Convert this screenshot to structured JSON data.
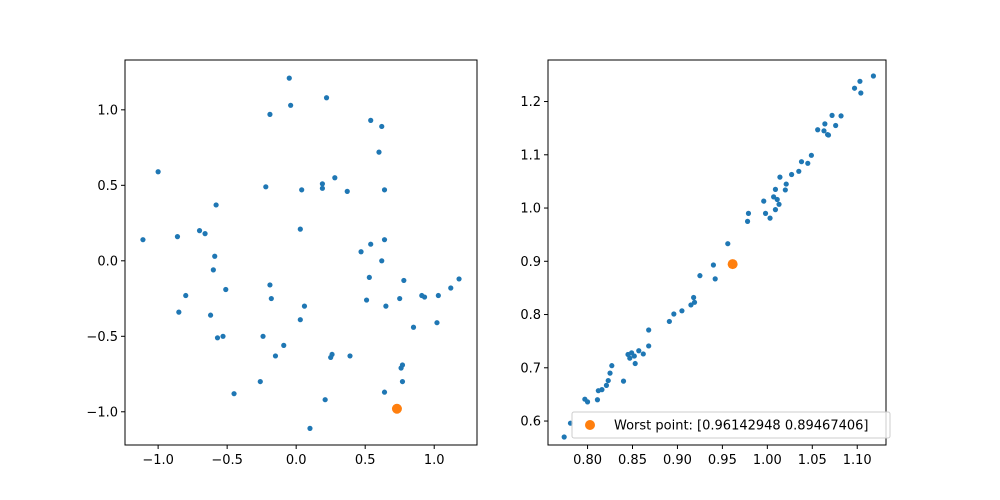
{
  "figure": {
    "background": "#ffffff",
    "series_color": "#1f77b4",
    "worst_color": "#ff7f0e"
  },
  "chart_data": [
    {
      "type": "scatter",
      "title": "",
      "xlabel": "",
      "ylabel": "",
      "xlim": [
        -1.24,
        1.31
      ],
      "ylim": [
        -1.22,
        1.33
      ],
      "xticks": [
        -1.0,
        -0.5,
        0.0,
        0.5,
        1.0
      ],
      "xtick_labels": [
        "−1.0",
        "−0.5",
        "0.0",
        "0.5",
        "1.0"
      ],
      "yticks": [
        -1.0,
        -0.5,
        0.0,
        0.5,
        1.0
      ],
      "yticks_labels_note": "",
      "ytick_labels": [
        "−1.0",
        "−0.5",
        "0.0",
        "0.5",
        "1.0"
      ],
      "grid": false,
      "series": [
        {
          "color": "#1f77b4",
          "marker_size": "small",
          "points": [
            [
              -0.05,
              1.21
            ],
            [
              -0.04,
              1.03
            ],
            [
              0.22,
              1.08
            ],
            [
              -0.19,
              0.97
            ],
            [
              0.54,
              0.93
            ],
            [
              0.62,
              0.89
            ],
            [
              0.6,
              0.72
            ],
            [
              -1.0,
              0.59
            ],
            [
              -0.58,
              0.37
            ],
            [
              -0.22,
              0.49
            ],
            [
              0.04,
              0.47
            ],
            [
              0.19,
              0.51
            ],
            [
              0.19,
              0.48
            ],
            [
              0.28,
              0.55
            ],
            [
              0.37,
              0.46
            ],
            [
              0.64,
              0.47
            ],
            [
              -0.7,
              0.2
            ],
            [
              -0.66,
              0.18
            ],
            [
              -0.86,
              0.16
            ],
            [
              0.03,
              0.21
            ],
            [
              -1.11,
              0.14
            ],
            [
              0.64,
              0.14
            ],
            [
              0.54,
              0.11
            ],
            [
              0.47,
              0.06
            ],
            [
              -0.59,
              0.03
            ],
            [
              -0.6,
              -0.06
            ],
            [
              0.62,
              0.0
            ],
            [
              -0.19,
              -0.16
            ],
            [
              0.53,
              -0.11
            ],
            [
              -0.51,
              -0.19
            ],
            [
              0.78,
              -0.13
            ],
            [
              1.18,
              -0.12
            ],
            [
              1.12,
              -0.18
            ],
            [
              -0.8,
              -0.23
            ],
            [
              -0.18,
              -0.25
            ],
            [
              0.51,
              -0.26
            ],
            [
              0.75,
              -0.25
            ],
            [
              0.91,
              -0.23
            ],
            [
              0.93,
              -0.24
            ],
            [
              1.03,
              -0.23
            ],
            [
              0.06,
              -0.3
            ],
            [
              0.65,
              -0.3
            ],
            [
              -0.85,
              -0.34
            ],
            [
              -0.62,
              -0.36
            ],
            [
              0.03,
              -0.39
            ],
            [
              1.02,
              -0.41
            ],
            [
              0.85,
              -0.44
            ],
            [
              -0.53,
              -0.5
            ],
            [
              -0.57,
              -0.51
            ],
            [
              -0.24,
              -0.5
            ],
            [
              -0.09,
              -0.56
            ],
            [
              -0.15,
              -0.63
            ],
            [
              0.26,
              -0.62
            ],
            [
              0.25,
              -0.64
            ],
            [
              0.39,
              -0.63
            ],
            [
              0.77,
              -0.69
            ],
            [
              0.76,
              -0.71
            ],
            [
              0.77,
              -0.8
            ],
            [
              -0.26,
              -0.8
            ],
            [
              -0.45,
              -0.88
            ],
            [
              0.64,
              -0.87
            ],
            [
              0.21,
              -0.92
            ],
            [
              0.1,
              -1.11
            ]
          ]
        },
        {
          "color": "#ff7f0e",
          "marker_size": "large",
          "points": [
            [
              0.73,
              -0.98
            ]
          ]
        }
      ]
    },
    {
      "type": "scatter",
      "title": "",
      "xlabel": "",
      "ylabel": "",
      "xlim": [
        0.756,
        1.132
      ],
      "ylim": [
        0.555,
        1.278
      ],
      "xticks": [
        0.8,
        0.85,
        0.9,
        0.95,
        1.0,
        1.05,
        1.1
      ],
      "xtick_labels": [
        "0.80",
        "0.85",
        "0.90",
        "0.95",
        "1.00",
        "1.05",
        "1.10"
      ],
      "yticks": [
        0.6,
        0.7,
        0.8,
        0.9,
        1.0,
        1.1,
        1.2
      ],
      "ytick_labels": [
        "0.6",
        "0.7",
        "0.8",
        "0.9",
        "1.0",
        "1.1",
        "1.2"
      ],
      "grid": false,
      "legend": {
        "placement": "lower-right",
        "entries": [
          {
            "label": "Worst point: [0.96142948 0.89467406]",
            "color": "#ff7f0e"
          }
        ]
      },
      "series": [
        {
          "color": "#1f77b4",
          "marker_size": "small",
          "points": [
            [
              0.774,
              0.57
            ],
            [
              0.781,
              0.596
            ],
            [
              0.797,
              0.641
            ],
            [
              0.8,
              0.636
            ],
            [
              0.812,
              0.657
            ],
            [
              0.811,
              0.64
            ],
            [
              0.816,
              0.659
            ],
            [
              0.821,
              0.667
            ],
            [
              0.823,
              0.676
            ],
            [
              0.825,
              0.69
            ],
            [
              0.827,
              0.704
            ],
            [
              0.84,
              0.675
            ],
            [
              0.845,
              0.725
            ],
            [
              0.847,
              0.718
            ],
            [
              0.849,
              0.728
            ],
            [
              0.852,
              0.722
            ],
            [
              0.853,
              0.708
            ],
            [
              0.857,
              0.732
            ],
            [
              0.862,
              0.726
            ],
            [
              0.868,
              0.741
            ],
            [
              0.868,
              0.771
            ],
            [
              0.891,
              0.787
            ],
            [
              0.896,
              0.801
            ],
            [
              0.905,
              0.807
            ],
            [
              0.915,
              0.818
            ],
            [
              0.918,
              0.832
            ],
            [
              0.919,
              0.823
            ],
            [
              0.925,
              0.873
            ],
            [
              0.94,
              0.893
            ],
            [
              0.942,
              0.867
            ],
            [
              0.956,
              0.933
            ],
            [
              0.978,
              0.975
            ],
            [
              0.979,
              0.99
            ],
            [
              0.996,
              1.013
            ],
            [
              0.998,
              0.99
            ],
            [
              1.003,
              0.981
            ],
            [
              1.007,
              1.021
            ],
            [
              1.009,
              1.035
            ],
            [
              1.009,
              0.997
            ],
            [
              1.011,
              1.016
            ],
            [
              1.013,
              1.007
            ],
            [
              1.014,
              1.058
            ],
            [
              1.02,
              1.034
            ],
            [
              1.021,
              1.045
            ],
            [
              1.027,
              1.063
            ],
            [
              1.035,
              1.069
            ],
            [
              1.038,
              1.087
            ],
            [
              1.045,
              1.084
            ],
            [
              1.049,
              1.099
            ],
            [
              1.056,
              1.147
            ],
            [
              1.063,
              1.145
            ],
            [
              1.064,
              1.158
            ],
            [
              1.067,
              1.138
            ],
            [
              1.068,
              1.137
            ],
            [
              1.072,
              1.174
            ],
            [
              1.076,
              1.155
            ],
            [
              1.082,
              1.173
            ],
            [
              1.097,
              1.225
            ],
            [
              1.103,
              1.238
            ],
            [
              1.104,
              1.216
            ],
            [
              1.118,
              1.248
            ]
          ]
        },
        {
          "color": "#ff7f0e",
          "marker_size": "large",
          "points": [
            [
              0.9614,
              0.8947
            ]
          ]
        }
      ]
    }
  ]
}
